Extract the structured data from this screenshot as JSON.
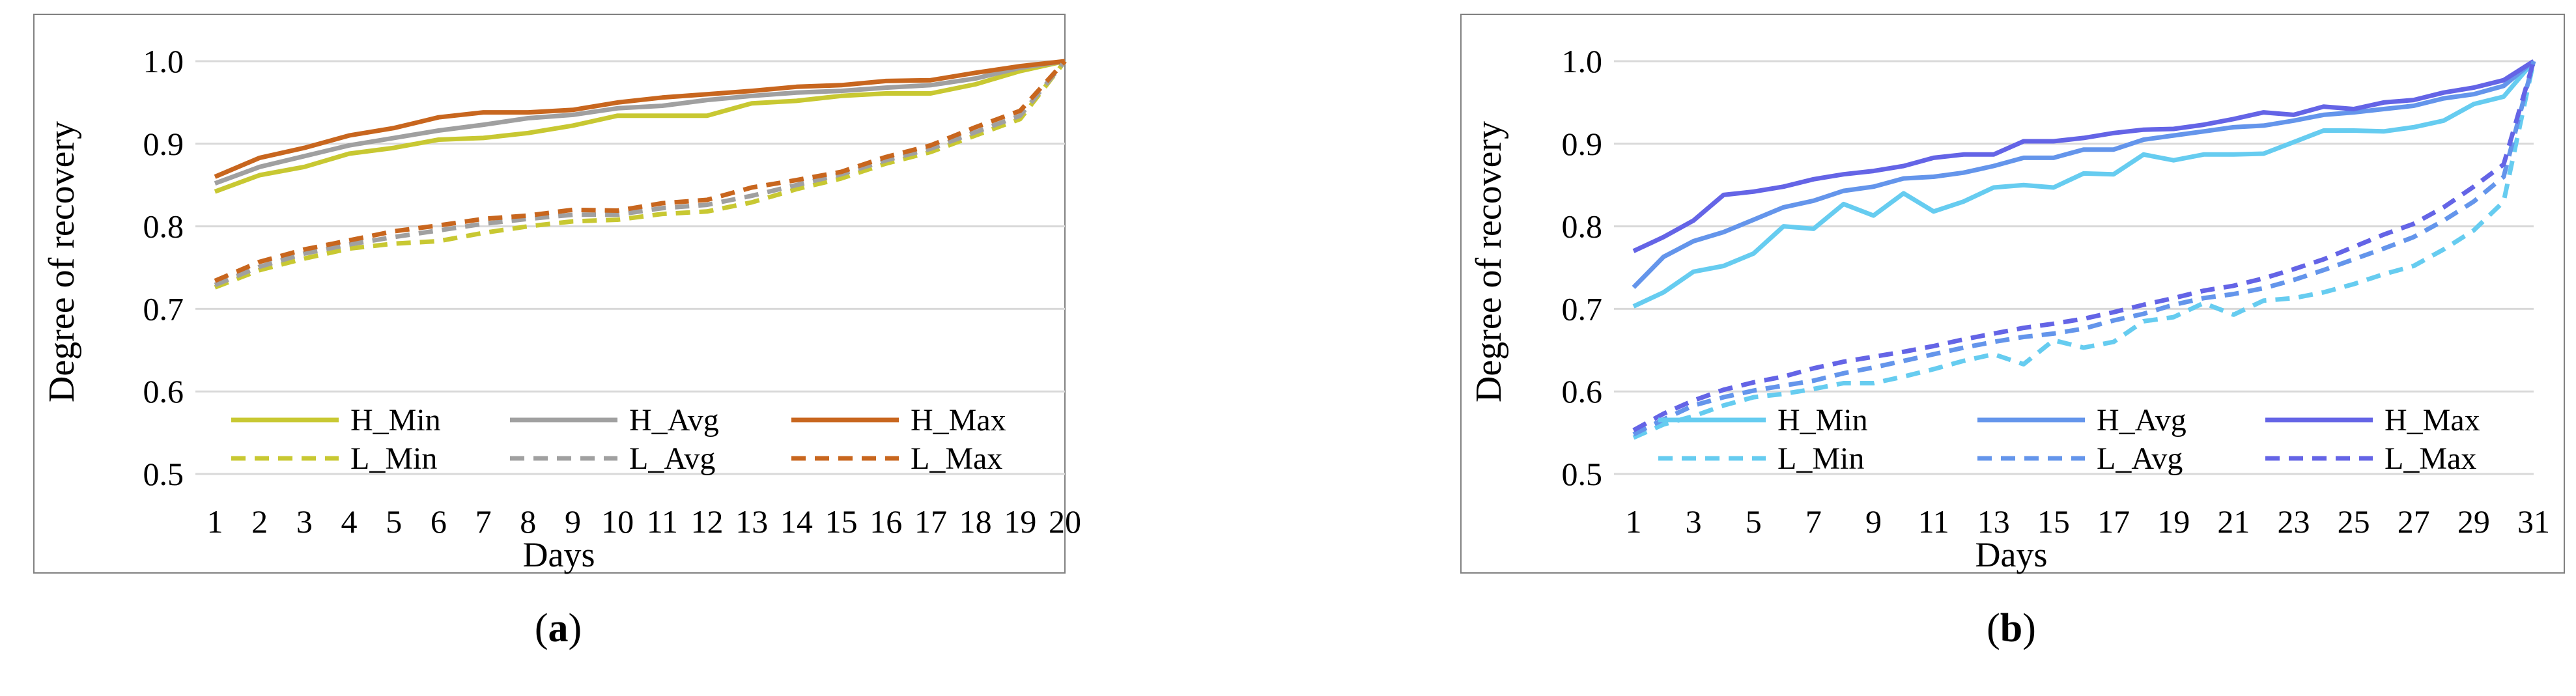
{
  "panels": [
    "(a)",
    "(b)"
  ],
  "colors": {
    "H_Min_a": "#C8C832",
    "H_Avg_a": "#A0A0A0",
    "H_Max_a": "#C8661E",
    "H_Min_b": "#66CCF0",
    "H_Avg_b": "#6495EB",
    "H_Max_b": "#6464E6",
    "grid": "#D9D9D9",
    "frame": "#808080"
  },
  "chart_data": [
    {
      "type": "line",
      "panel_label": "(a)",
      "xlabel": "Days",
      "ylabel": "Degree of recovery",
      "ylim": [
        0.5,
        1.0
      ],
      "yticks": [
        "0.5",
        "0.6",
        "0.7",
        "0.8",
        "0.9",
        "1.0"
      ],
      "grid": true,
      "legend_position": "bottom-inside",
      "categories": [
        "1",
        "2",
        "3",
        "4",
        "5",
        "6",
        "7",
        "8",
        "9",
        "10",
        "11",
        "12",
        "13",
        "14",
        "15",
        "16",
        "17",
        "18",
        "19",
        "20"
      ],
      "series": [
        {
          "name": "H_Min",
          "style": "solid",
          "values": [
            0.842,
            0.862,
            0.872,
            0.888,
            0.895,
            0.905,
            0.907,
            0.913,
            0.922,
            0.934,
            0.934,
            0.934,
            0.949,
            0.952,
            0.958,
            0.961,
            0.961,
            0.972,
            0.988,
            1.0
          ]
        },
        {
          "name": "H_Avg",
          "style": "solid",
          "values": [
            0.852,
            0.872,
            0.885,
            0.898,
            0.907,
            0.916,
            0.923,
            0.931,
            0.935,
            0.943,
            0.946,
            0.953,
            0.958,
            0.962,
            0.964,
            0.968,
            0.971,
            0.979,
            0.992,
            1.0
          ]
        },
        {
          "name": "H_Max",
          "style": "solid",
          "values": [
            0.86,
            0.883,
            0.895,
            0.91,
            0.919,
            0.932,
            0.938,
            0.938,
            0.941,
            0.95,
            0.956,
            0.96,
            0.964,
            0.969,
            0.971,
            0.976,
            0.977,
            0.986,
            0.994,
            1.0
          ]
        },
        {
          "name": "L_Min",
          "style": "dashed",
          "values": [
            0.726,
            0.747,
            0.761,
            0.773,
            0.779,
            0.782,
            0.792,
            0.8,
            0.806,
            0.808,
            0.815,
            0.818,
            0.829,
            0.845,
            0.858,
            0.876,
            0.89,
            0.91,
            0.93,
            1.0
          ]
        },
        {
          "name": "L_Avg",
          "style": "dashed",
          "values": [
            0.729,
            0.751,
            0.767,
            0.778,
            0.787,
            0.795,
            0.803,
            0.809,
            0.814,
            0.814,
            0.822,
            0.826,
            0.837,
            0.85,
            0.863,
            0.88,
            0.894,
            0.914,
            0.934,
            1.0
          ]
        },
        {
          "name": "L_Max",
          "style": "dashed",
          "values": [
            0.734,
            0.757,
            0.772,
            0.783,
            0.794,
            0.801,
            0.809,
            0.813,
            0.82,
            0.819,
            0.828,
            0.832,
            0.847,
            0.856,
            0.866,
            0.884,
            0.898,
            0.92,
            0.94,
            1.0
          ]
        }
      ]
    },
    {
      "type": "line",
      "panel_label": "(b)",
      "xlabel": "Days",
      "ylabel": "Degree of recovery",
      "ylim": [
        0.5,
        1.0
      ],
      "yticks": [
        "0.5",
        "0.6",
        "0.7",
        "0.8",
        "0.9",
        "1.0"
      ],
      "grid": true,
      "legend_position": "bottom-inside",
      "categories": [
        "1",
        "2",
        "3",
        "4",
        "5",
        "6",
        "7",
        "8",
        "9",
        "10",
        "11",
        "12",
        "13",
        "14",
        "15",
        "16",
        "17",
        "18",
        "19",
        "20",
        "21",
        "22",
        "23",
        "24",
        "25",
        "26",
        "27",
        "28",
        "29",
        "30",
        "31"
      ],
      "tick_labels": [
        "1",
        "3",
        "5",
        "7",
        "9",
        "11",
        "13",
        "15",
        "17",
        "19",
        "21",
        "23",
        "25",
        "27",
        "29",
        "31"
      ],
      "series": [
        {
          "name": "H_Min",
          "style": "solid",
          "values": [
            0.703,
            0.72,
            0.745,
            0.752,
            0.767,
            0.8,
            0.797,
            0.827,
            0.813,
            0.84,
            0.818,
            0.83,
            0.847,
            0.85,
            0.847,
            0.864,
            0.863,
            0.887,
            0.88,
            0.887,
            0.887,
            0.888,
            0.902,
            0.916,
            0.916,
            0.915,
            0.92,
            0.928,
            0.948,
            0.957,
            1.0
          ]
        },
        {
          "name": "H_Avg",
          "style": "solid",
          "values": [
            0.726,
            0.763,
            0.782,
            0.793,
            0.808,
            0.823,
            0.831,
            0.843,
            0.848,
            0.858,
            0.86,
            0.865,
            0.873,
            0.883,
            0.883,
            0.893,
            0.893,
            0.905,
            0.91,
            0.915,
            0.92,
            0.922,
            0.928,
            0.935,
            0.938,
            0.942,
            0.946,
            0.955,
            0.96,
            0.97,
            1.0
          ]
        },
        {
          "name": "H_Max",
          "style": "solid",
          "values": [
            0.77,
            0.787,
            0.807,
            0.838,
            0.842,
            0.848,
            0.857,
            0.863,
            0.867,
            0.873,
            0.883,
            0.887,
            0.887,
            0.903,
            0.903,
            0.907,
            0.913,
            0.917,
            0.918,
            0.923,
            0.93,
            0.938,
            0.935,
            0.945,
            0.942,
            0.95,
            0.953,
            0.962,
            0.968,
            0.977,
            1.0
          ]
        },
        {
          "name": "L_Min",
          "style": "dashed",
          "values": [
            0.544,
            0.56,
            0.57,
            0.583,
            0.593,
            0.597,
            0.603,
            0.61,
            0.61,
            0.618,
            0.627,
            0.637,
            0.645,
            0.633,
            0.662,
            0.653,
            0.66,
            0.685,
            0.69,
            0.707,
            0.693,
            0.71,
            0.713,
            0.72,
            0.73,
            0.742,
            0.752,
            0.772,
            0.795,
            0.83,
            1.0
          ]
        },
        {
          "name": "L_Avg",
          "style": "dashed",
          "values": [
            0.548,
            0.566,
            0.583,
            0.593,
            0.601,
            0.607,
            0.613,
            0.622,
            0.629,
            0.637,
            0.645,
            0.653,
            0.66,
            0.666,
            0.67,
            0.676,
            0.686,
            0.694,
            0.705,
            0.713,
            0.718,
            0.725,
            0.735,
            0.747,
            0.76,
            0.773,
            0.787,
            0.807,
            0.83,
            0.86,
            1.0
          ]
        },
        {
          "name": "L_Max",
          "style": "dashed",
          "values": [
            0.553,
            0.573,
            0.589,
            0.602,
            0.611,
            0.618,
            0.628,
            0.636,
            0.642,
            0.648,
            0.655,
            0.663,
            0.67,
            0.677,
            0.682,
            0.688,
            0.696,
            0.705,
            0.713,
            0.722,
            0.728,
            0.737,
            0.748,
            0.76,
            0.775,
            0.79,
            0.803,
            0.823,
            0.848,
            0.875,
            1.0
          ]
        }
      ]
    }
  ]
}
